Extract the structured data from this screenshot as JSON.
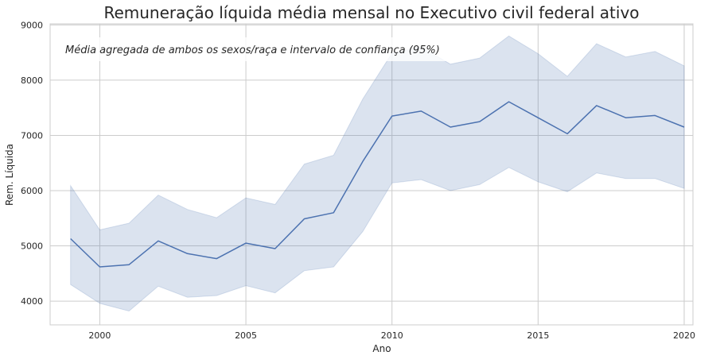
{
  "chart_data": {
    "type": "line",
    "title": "Remuneração líquida média mensal no Executivo civil federal ativo",
    "annotation": "Média agregada de ambos os sexos/raça e intervalo de confiança (95%)",
    "xlabel": "Ano",
    "ylabel": "Rem. Líquida",
    "xlim": [
      1998.3,
      2020.3
    ],
    "ylim": [
      3570,
      9020
    ],
    "x_ticks": [
      2000,
      2005,
      2010,
      2015,
      2020
    ],
    "y_ticks": [
      4000,
      5000,
      6000,
      7000,
      8000,
      9000
    ],
    "grid": true,
    "colors": {
      "line": "#4c72b0",
      "band": "#4c72b0",
      "grid": "#cccccc",
      "frame": "#cccccc",
      "text": "#262626"
    },
    "x": [
      1999,
      2000,
      2001,
      2002,
      2003,
      2004,
      2005,
      2006,
      2007,
      2008,
      2009,
      2010,
      2011,
      2012,
      2013,
      2014,
      2015,
      2016,
      2017,
      2018,
      2019,
      2020
    ],
    "series": [
      {
        "values": [
          5130,
          4620,
          4660,
          5090,
          4860,
          4770,
          5050,
          4950,
          5490,
          5600,
          6530,
          7350,
          7440,
          7150,
          7250,
          7610,
          7320,
          7030,
          7540,
          7320,
          7360,
          7150
        ],
        "ci_low": [
          4300,
          3960,
          3820,
          4270,
          4070,
          4100,
          4280,
          4150,
          4550,
          4620,
          5260,
          6140,
          6200,
          6000,
          6110,
          6420,
          6160,
          5980,
          6320,
          6220,
          6220,
          6040
        ],
        "ci_high": [
          6090,
          5290,
          5410,
          5920,
          5660,
          5510,
          5870,
          5750,
          6480,
          6640,
          7660,
          8490,
          8600,
          8290,
          8400,
          8800,
          8480,
          8070,
          8660,
          8420,
          8520,
          8260
        ]
      }
    ]
  }
}
